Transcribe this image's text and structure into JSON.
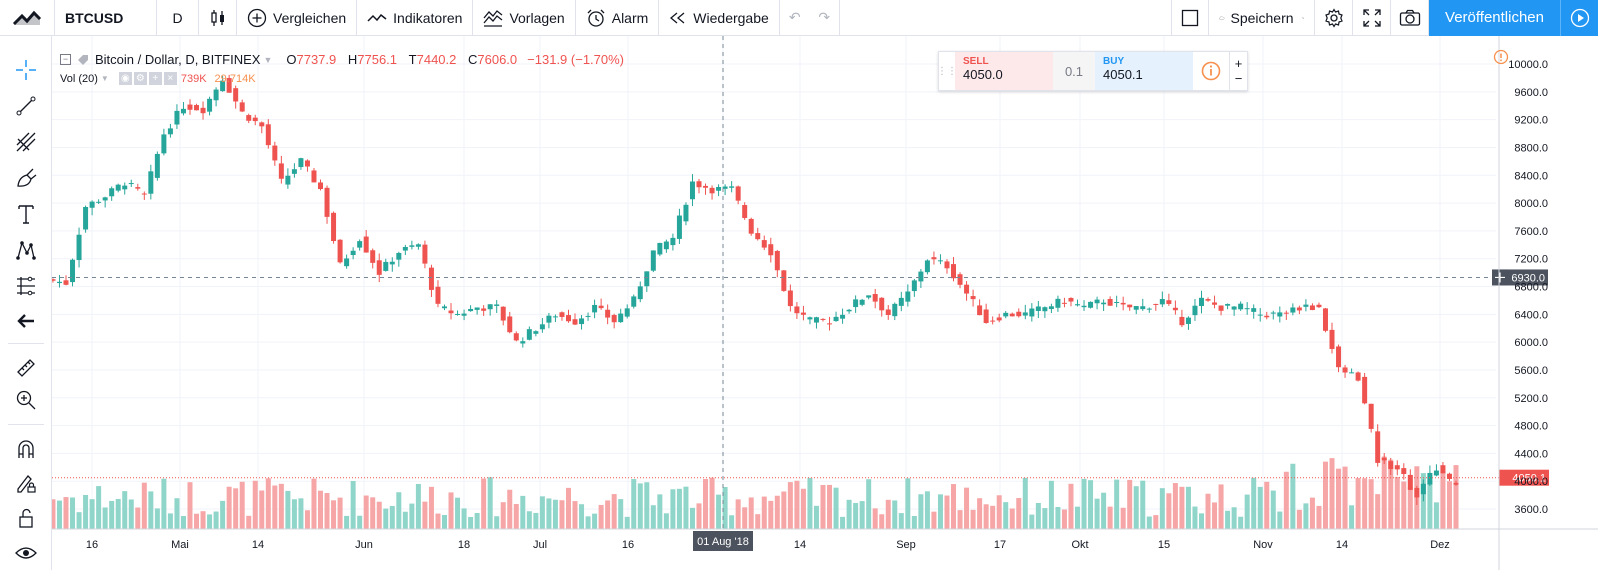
{
  "toolbar": {
    "symbol": "BTCUSD",
    "resolution": "D",
    "compare": "Vergleichen",
    "indicators": "Indikatoren",
    "templates": "Vorlagen",
    "alarm": "Alarm",
    "replay": "Wiedergabe",
    "save": "Speichern",
    "publish": "Veröffentlichen"
  },
  "legend": {
    "symbol_full": "Bitcoin / Dollar, D, BITFINEX",
    "o_label": "O",
    "o": "7737.9",
    "h_label": "H",
    "h": "7756.1",
    "l_label": "T",
    "l": "7440.2",
    "c_label": "C",
    "c": "7606.0",
    "change": "−131.9 (−1.70%)",
    "vol_label": "Vol (20)",
    "vol_value1": "739K",
    "vol_value2": "29.714K"
  },
  "trade": {
    "sell_label": "SELL",
    "sell_price": "4050.0",
    "qty": "0.1",
    "buy_label": "BUY",
    "buy_price": "4050.1",
    "plus": "+",
    "minus": "−"
  },
  "chart_data": {
    "type": "candlestick",
    "y_axis_ticks": [
      "10000.0",
      "9600.0",
      "9200.0",
      "8800.0",
      "8400.0",
      "8000.0",
      "7600.0",
      "7200.0",
      "6800.0",
      "6400.0",
      "6000.0",
      "5600.0",
      "5200.0",
      "4800.0",
      "4400.0",
      "4000.0",
      "3600.0"
    ],
    "x_axis_ticks": [
      "16",
      "Mai",
      "14",
      "Jun",
      "18",
      "Jul",
      "16",
      "01 Aug '18",
      "14",
      "Sep",
      "17",
      "Okt",
      "15",
      "Nov",
      "14",
      "Dez"
    ],
    "crosshair_date": "01 Aug '18",
    "crosshair_price": "6930.0",
    "last_price": "4050.1",
    "close_approx": [
      6850,
      7950,
      8100,
      8300,
      8100,
      9000,
      9400,
      9350,
      9800,
      9300,
      9100,
      8300,
      8600,
      8200,
      7100,
      7500,
      7000,
      7300,
      7400,
      6500,
      6400,
      6500,
      6500,
      6000,
      6200,
      6400,
      6300,
      6500,
      6300,
      6600,
      7300,
      7500,
      8300,
      8200,
      8200,
      7600,
      7300,
      6500,
      6300,
      6300,
      6500,
      6700,
      6400,
      6700,
      7200,
      7100,
      6700,
      6300,
      6400,
      6400,
      6500,
      6600,
      6500,
      6600,
      6500,
      6500,
      6600,
      6300,
      6600,
      6500,
      6500,
      6400,
      6400,
      6500,
      6500,
      5600,
      5500,
      4300,
      4200,
      3800,
      4200,
      3900
    ]
  }
}
